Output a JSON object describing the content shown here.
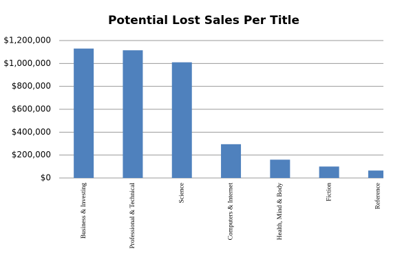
{
  "chart_data": {
    "type": "bar",
    "title": "Potential Lost Sales Per Title",
    "categories": [
      "Business & Investing",
      "Professional & Technical",
      "Science",
      "Computers & Internet",
      "Health, Mind & Body",
      "Fiction",
      "Reference"
    ],
    "values": [
      1130000,
      1115000,
      1010000,
      295000,
      160000,
      100000,
      65000
    ],
    "color": "#4f81bd",
    "ylim": [
      0,
      1200000
    ],
    "yticks": [
      {
        "value": 0,
        "label": "$0"
      },
      {
        "value": 200000,
        "label": "$200,000"
      },
      {
        "value": 400000,
        "label": "$400,000"
      },
      {
        "value": 600000,
        "label": "$600,000"
      },
      {
        "value": 800000,
        "label": "$800,000"
      },
      {
        "value": 1000000,
        "label": "$1,000,000"
      },
      {
        "value": 1200000,
        "label": "$1,200,000"
      }
    ],
    "grid": true
  }
}
